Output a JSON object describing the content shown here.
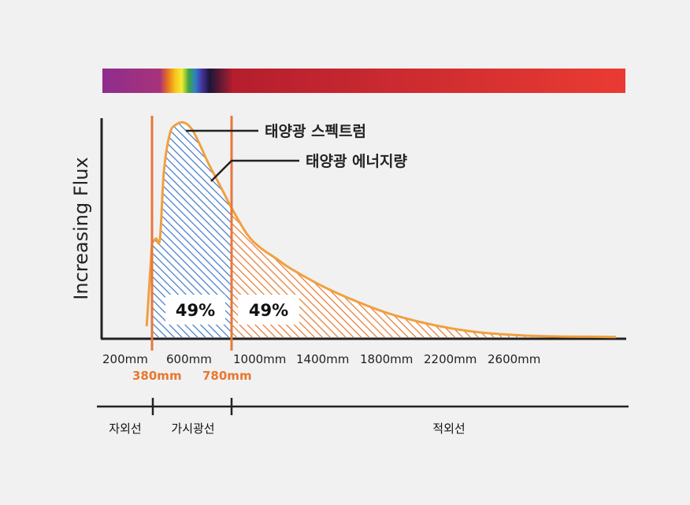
{
  "chart_data": {
    "type": "area",
    "ylabel": "Increasing Flux",
    "x_tick_labels": [
      "200mm",
      "600mm",
      "1000mm",
      "1400mm",
      "1800mm",
      "2200mm",
      "2600mm"
    ],
    "x_ticks": [
      200,
      600,
      1000,
      1400,
      1800,
      2200,
      2600
    ],
    "xlim": [
      130,
      3450
    ],
    "markers": [
      {
        "label": "380mm",
        "x": 380
      },
      {
        "label": "780mm",
        "x": 780
      }
    ],
    "series": [
      {
        "x": [
          380,
          400,
          420,
          440,
          470,
          500,
          540,
          580,
          620,
          660,
          700,
          740,
          780,
          900,
          1000,
          1100,
          1200,
          1400,
          1600,
          1800,
          2000,
          2200,
          2400,
          2600,
          2800,
          3000,
          3200,
          3400
        ],
        "values": [
          0.43,
          0.45,
          0.45,
          0.76,
          0.93,
          0.97,
          0.98,
          0.95,
          0.88,
          0.8,
          0.73,
          0.66,
          0.59,
          0.47,
          0.41,
          0.36,
          0.31,
          0.23,
          0.165,
          0.11,
          0.07,
          0.04,
          0.02,
          0.01,
          0.005,
          0.003,
          0.002,
          0.001
        ]
      }
    ],
    "region_percentages": [
      {
        "label": "49%",
        "from": 380,
        "to": 780
      },
      {
        "label": "49%",
        "from": 780,
        "to": 3450
      }
    ],
    "annotations": [
      "태양광 스펙트럼",
      "태양광 에너지량"
    ],
    "bands": [
      {
        "label": "자외선",
        "from": 130,
        "to": 380
      },
      {
        "label": "가시광선",
        "from": 380,
        "to": 780
      },
      {
        "label": "적외선",
        "from": 780,
        "to": 3450
      }
    ],
    "colors": {
      "visible_fill": "#3f78c8",
      "infrared_fill": "#e8772e",
      "curve": "#f0a040",
      "marker_line": "#e8773a"
    }
  }
}
